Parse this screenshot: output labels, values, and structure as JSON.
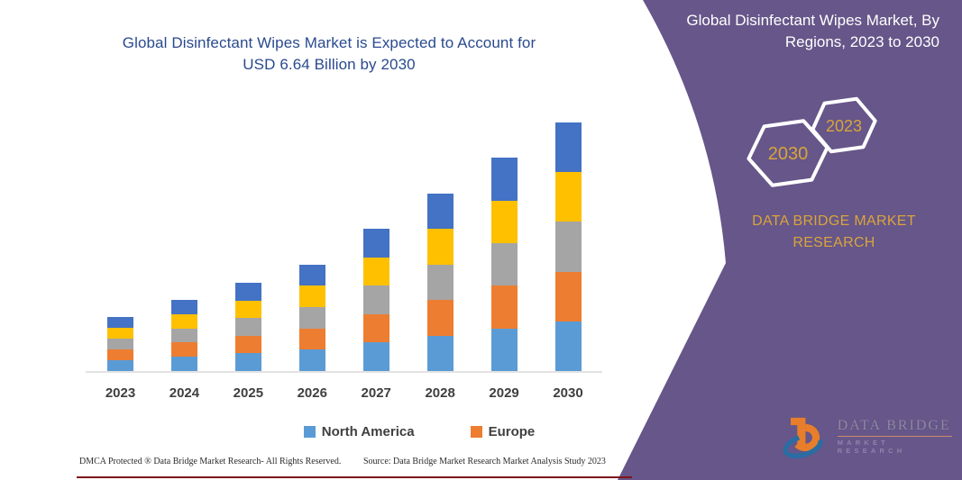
{
  "chart": {
    "title_line1": "Global Disinfectant Wipes Market is Expected to Account for",
    "title_line2": "USD 6.64 Billion by 2030"
  },
  "chart_data": {
    "type": "bar",
    "stacked": true,
    "title": "Global Disinfectant Wipes Market is Expected to Account for USD 6.64 Billion by 2030",
    "unit": "USD Billion",
    "categories": [
      "2023",
      "2024",
      "2025",
      "2026",
      "2027",
      "2028",
      "2029",
      "2030"
    ],
    "series": [
      {
        "name": "North America",
        "color": "#5B9BD5",
        "values": [
          0.29,
          0.38,
          0.47,
          0.57,
          0.76,
          0.95,
          1.14,
          1.33
        ]
      },
      {
        "name": "Europe",
        "color": "#ED7D31",
        "values": [
          0.29,
          0.38,
          0.47,
          0.57,
          0.76,
          0.95,
          1.14,
          1.33
        ]
      },
      {
        "name": "Unlabeled (gray)",
        "color": "#A5A5A5",
        "values": [
          0.29,
          0.38,
          0.47,
          0.57,
          0.76,
          0.95,
          1.14,
          1.33
        ]
      },
      {
        "name": "Unlabeled (yellow)",
        "color": "#FFC000",
        "values": [
          0.29,
          0.38,
          0.47,
          0.57,
          0.76,
          0.95,
          1.14,
          1.33
        ]
      },
      {
        "name": "Unlabeled (dark blue)",
        "color": "#4472C4",
        "values": [
          0.29,
          0.38,
          0.47,
          0.57,
          0.76,
          0.95,
          1.14,
          1.33
        ]
      }
    ],
    "totals_estimated": [
      1.44,
      1.88,
      2.36,
      2.86,
      3.8,
      4.74,
      5.7,
      6.64
    ],
    "legend": [
      "North America",
      "Europe"
    ],
    "legend_position": "bottom",
    "grid": false,
    "y_axis_shown": false
  },
  "footer": {
    "dmca": "DMCA Protected ® Data Bridge Market Research-  All Rights Reserved.",
    "source": "Source: Data Bridge Market Research  Market Analysis Study 2023"
  },
  "panel": {
    "title_line1": "Global Disinfectant Wipes Market, By",
    "title_line2": "Regions, 2023 to 2030",
    "hexagon_back_label": "2030",
    "hexagon_front_label": "2023",
    "brand_line1": "DATA BRIDGE MARKET",
    "brand_line2": "RESEARCH",
    "colors": {
      "panel_purple": "#665689",
      "accent_gold": "#D9A43C",
      "title_navy": "#2A4A8F",
      "hexagon_stroke": "#FFFFFF"
    }
  },
  "logo": {
    "wordmark_line1": "DATA BRIDGE",
    "wordmark_line2": "MARKET RESEARCH"
  }
}
